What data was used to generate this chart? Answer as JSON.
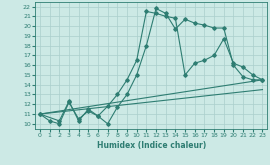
{
  "xlabel": "Humidex (Indice chaleur)",
  "xlim": [
    -0.5,
    23.5
  ],
  "ylim": [
    9.5,
    22.5
  ],
  "xticks": [
    0,
    1,
    2,
    3,
    4,
    5,
    6,
    7,
    8,
    9,
    10,
    11,
    12,
    13,
    14,
    15,
    16,
    17,
    18,
    19,
    20,
    21,
    22,
    23
  ],
  "yticks": [
    10,
    11,
    12,
    13,
    14,
    15,
    16,
    17,
    18,
    19,
    20,
    21,
    22
  ],
  "bg_color": "#cce9e5",
  "grid_color": "#aacfcc",
  "line_color": "#2e7d72",
  "series1_x": [
    0,
    1,
    2,
    3,
    4,
    5,
    6,
    7,
    8,
    9,
    10,
    11,
    12,
    13,
    14,
    15,
    16,
    17,
    18,
    19,
    20,
    21,
    22,
    23
  ],
  "series1_y": [
    11.0,
    10.3,
    10.0,
    12.2,
    10.5,
    11.3,
    10.8,
    10.0,
    11.7,
    13.0,
    15.0,
    18.0,
    21.8,
    21.3,
    19.7,
    20.7,
    20.3,
    20.1,
    19.8,
    19.8,
    16.0,
    14.8,
    14.5,
    14.5
  ],
  "series2_x": [
    0,
    2,
    3,
    4,
    5,
    6,
    7,
    8,
    9,
    10,
    11,
    12,
    13,
    14,
    15,
    16,
    17,
    18,
    19,
    20,
    21,
    22,
    23
  ],
  "series2_y": [
    11.0,
    10.3,
    12.3,
    10.3,
    11.5,
    10.8,
    11.8,
    13.0,
    14.5,
    16.5,
    21.5,
    21.3,
    21.0,
    20.8,
    15.0,
    16.2,
    16.5,
    17.0,
    18.7,
    16.2,
    15.8,
    15.0,
    14.5
  ],
  "series3_x": [
    0,
    23
  ],
  "series3_y": [
    11.0,
    14.5
  ],
  "series4_x": [
    0,
    23
  ],
  "series4_y": [
    11.0,
    13.5
  ]
}
